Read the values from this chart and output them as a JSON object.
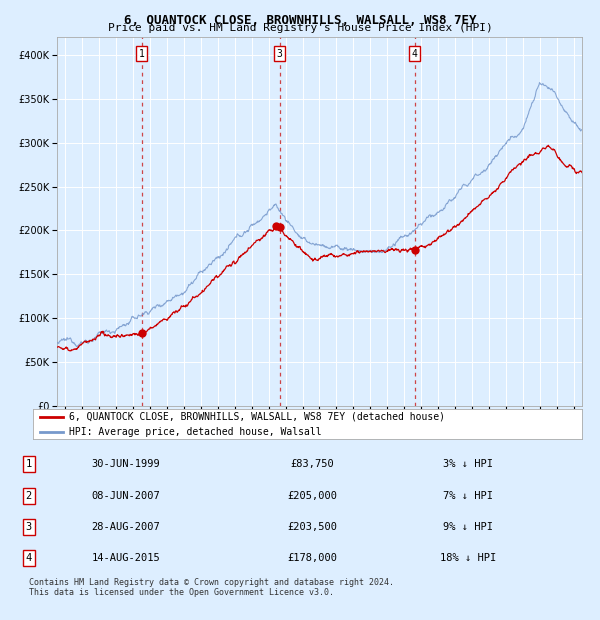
{
  "title": "6, QUANTOCK CLOSE, BROWNHILLS, WALSALL, WS8 7EY",
  "subtitle": "Price paid vs. HM Land Registry's House Price Index (HPI)",
  "ylim": [
    0,
    420000
  ],
  "yticks": [
    0,
    50000,
    100000,
    150000,
    200000,
    250000,
    300000,
    350000,
    400000
  ],
  "ytick_labels": [
    "£0",
    "£50K",
    "£100K",
    "£150K",
    "£200K",
    "£250K",
    "£300K",
    "£350K",
    "£400K"
  ],
  "xlim_start": 1994.5,
  "xlim_end": 2025.5,
  "background_color": "#ddeeff",
  "plot_bg_color": "#ddeeff",
  "grid_color": "#ffffff",
  "red_line_color": "#cc0000",
  "blue_line_color": "#7799cc",
  "sale_marker_color": "#cc0000",
  "vline_color": "#cc3333",
  "annotation_box_edge": "#cc0000",
  "transactions": [
    {
      "num": 1,
      "date_str": "30-JUN-1999",
      "price": 83750,
      "year": 1999.5,
      "label": "1"
    },
    {
      "num": 2,
      "date_str": "08-JUN-2007",
      "price": 205000,
      "year": 2007.44,
      "label": "2"
    },
    {
      "num": 3,
      "date_str": "28-AUG-2007",
      "price": 203500,
      "year": 2007.65,
      "label": "3"
    },
    {
      "num": 4,
      "date_str": "14-AUG-2015",
      "price": 178000,
      "year": 2015.62,
      "label": "4"
    }
  ],
  "vline_transactions": [
    "1",
    "3",
    "4"
  ],
  "legend_entries": [
    "6, QUANTOCK CLOSE, BROWNHILLS, WALSALL, WS8 7EY (detached house)",
    "HPI: Average price, detached house, Walsall"
  ],
  "table_rows": [
    {
      "num": "1",
      "date": "30-JUN-1999",
      "price": "£83,750",
      "pct": "3% ↓ HPI"
    },
    {
      "num": "2",
      "date": "08-JUN-2007",
      "price": "£205,000",
      "pct": "7% ↓ HPI"
    },
    {
      "num": "3",
      "date": "28-AUG-2007",
      "price": "£203,500",
      "pct": "9% ↓ HPI"
    },
    {
      "num": "4",
      "date": "14-AUG-2015",
      "price": "£178,000",
      "pct": "18% ↓ HPI"
    }
  ],
  "footer": "Contains HM Land Registry data © Crown copyright and database right 2024.\nThis data is licensed under the Open Government Licence v3.0.",
  "title_fontsize": 9,
  "subtitle_fontsize": 8,
  "tick_fontsize": 7,
  "legend_fontsize": 7,
  "table_fontsize": 7.5,
  "footer_fontsize": 6
}
